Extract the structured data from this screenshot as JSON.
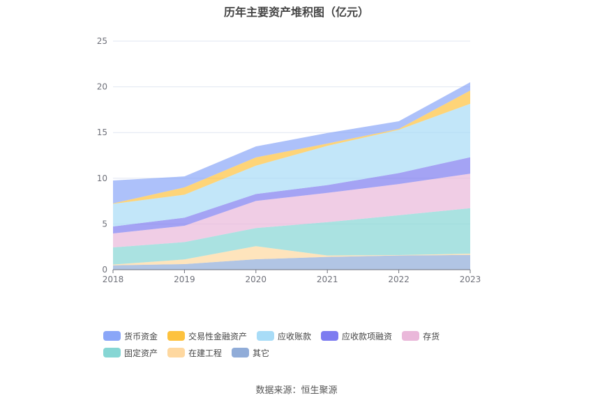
{
  "chart_data": {
    "type": "area",
    "stacked": true,
    "title": "历年主要资产堆积图（亿元）",
    "xlabel": "",
    "ylabel": "",
    "x": [
      "2018",
      "2019",
      "2020",
      "2021",
      "2022",
      "2023"
    ],
    "ylim": [
      0,
      25
    ],
    "yticks": [
      0,
      5,
      10,
      15,
      20,
      25
    ],
    "grid": true,
    "legend_position": "bottom",
    "series": [
      {
        "name": "货币资金",
        "color": "#8aa6f8",
        "values": [
          2.51,
          1.2,
          1.2,
          1.15,
          0.83,
          0.9
        ]
      },
      {
        "name": "交易性金融资产",
        "color": "#fdc23e",
        "values": [
          0.05,
          0.8,
          0.9,
          0.25,
          0.1,
          1.45
        ]
      },
      {
        "name": "应收账款",
        "color": "#a8dcf7",
        "values": [
          2.47,
          2.51,
          3.1,
          4.3,
          4.73,
          5.85
        ]
      },
      {
        "name": "应收款项融资",
        "color": "#7d7cf0",
        "values": [
          0.77,
          0.89,
          0.76,
          0.85,
          1.2,
          1.8
        ]
      },
      {
        "name": "存货",
        "color": "#eab8da",
        "values": [
          1.52,
          1.78,
          2.97,
          3.2,
          3.42,
          3.77
        ]
      },
      {
        "name": "固定资产",
        "color": "#86d6d4",
        "values": [
          1.88,
          1.9,
          1.98,
          3.65,
          4.35,
          4.98
        ]
      },
      {
        "name": "在建工程",
        "color": "#fed8a0",
        "values": [
          0.08,
          0.51,
          1.43,
          0.15,
          0.05,
          0.13
        ]
      },
      {
        "name": "其它",
        "color": "#90acd8",
        "values": [
          0.48,
          0.61,
          1.14,
          1.4,
          1.55,
          1.62
        ]
      }
    ]
  },
  "source": "数据来源：恒生聚源"
}
